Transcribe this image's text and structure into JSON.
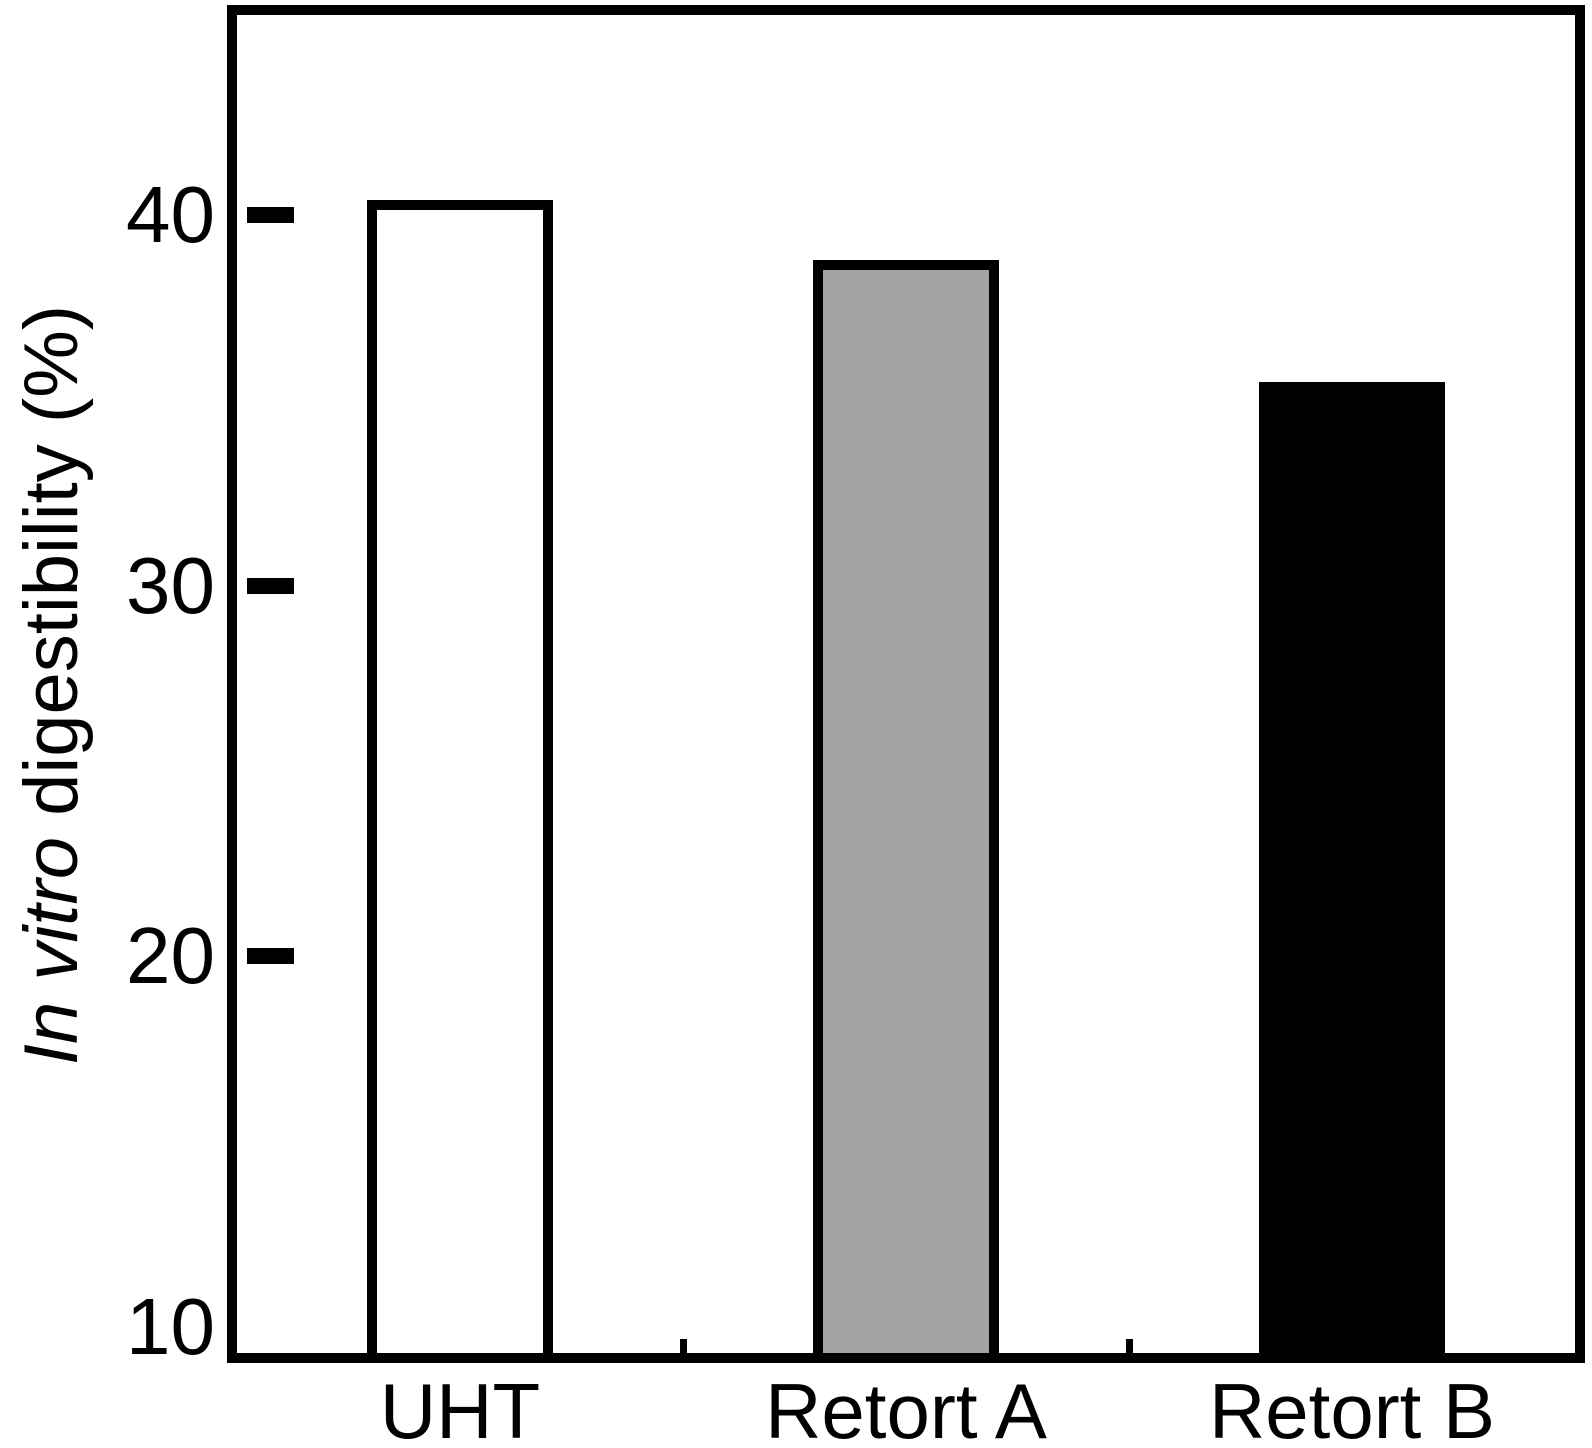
{
  "chart_data": {
    "type": "bar",
    "categories": [
      "UHT",
      "Retort A",
      "Retort B"
    ],
    "values": [
      40.4,
      38.8,
      35.5
    ],
    "title": "",
    "xlabel": "",
    "ylabel": "In vitro digestibility (%)",
    "ylabel_italic_part": "In vitro",
    "ylabel_regular_part": " digestibility (%)",
    "ylim": [
      9.3,
      45.4
    ],
    "yticks": [
      {
        "value": 40,
        "label": "40",
        "dash": true
      },
      {
        "value": 30,
        "label": "30",
        "dash": true
      },
      {
        "value": 20,
        "label": "20",
        "dash": true
      },
      {
        "value": 10,
        "label": "10",
        "dash": false
      }
    ],
    "grid": false,
    "legend": "none",
    "bar_fill_colors": [
      "#ffffff",
      "#a3a3a3",
      "#000000"
    ],
    "bar_border_color": "#000000",
    "axis_color": "#000000"
  }
}
